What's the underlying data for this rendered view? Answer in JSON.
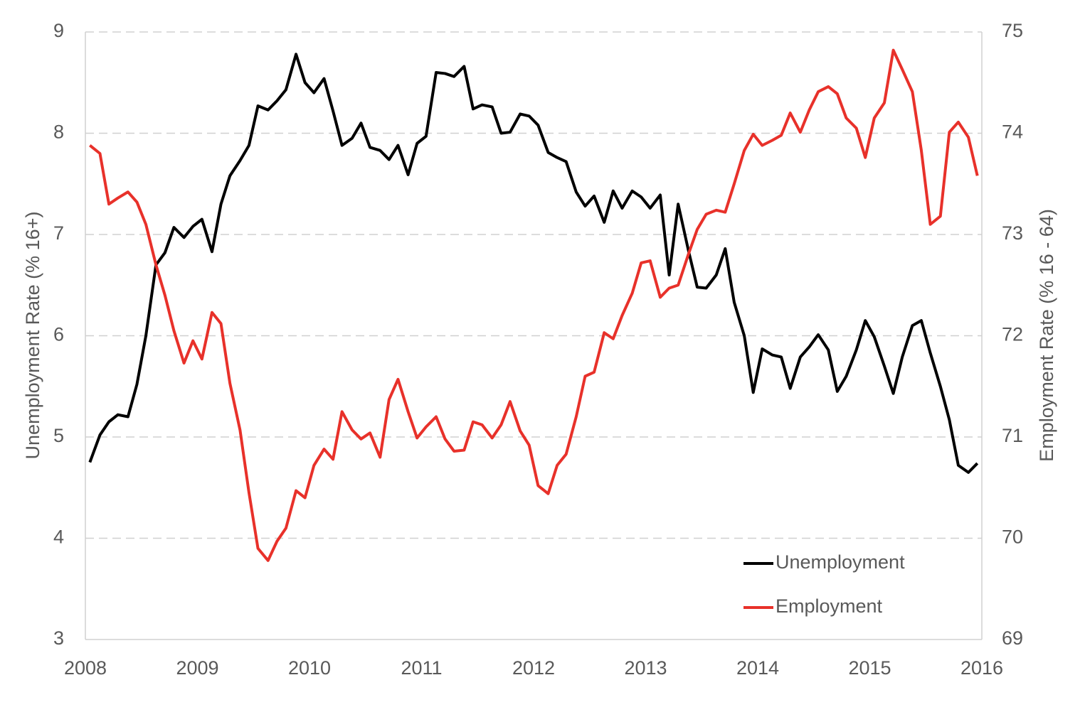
{
  "chart_data": {
    "type": "line",
    "ylabel": "Unemployment Rate (% 16+)",
    "y2label": "Employment Rate (% 16 - 64)",
    "x": [
      2008.04,
      2008.13,
      2008.21,
      2008.29,
      2008.38,
      2008.46,
      2008.54,
      2008.63,
      2008.71,
      2008.79,
      2008.88,
      2008.96,
      2009.04,
      2009.13,
      2009.21,
      2009.29,
      2009.38,
      2009.46,
      2009.54,
      2009.63,
      2009.71,
      2009.79,
      2009.88,
      2009.96,
      2010.04,
      2010.13,
      2010.21,
      2010.29,
      2010.38,
      2010.46,
      2010.54,
      2010.63,
      2010.71,
      2010.79,
      2010.88,
      2010.96,
      2011.04,
      2011.13,
      2011.21,
      2011.29,
      2011.38,
      2011.46,
      2011.54,
      2011.63,
      2011.71,
      2011.79,
      2011.88,
      2011.96,
      2012.04,
      2012.13,
      2012.21,
      2012.29,
      2012.38,
      2012.46,
      2012.54,
      2012.63,
      2012.71,
      2012.79,
      2012.88,
      2012.96,
      2013.04,
      2013.13,
      2013.21,
      2013.29,
      2013.38,
      2013.46,
      2013.54,
      2013.63,
      2013.71,
      2013.79,
      2013.88,
      2013.96,
      2014.04,
      2014.13,
      2014.21,
      2014.29,
      2014.38,
      2014.46,
      2014.54,
      2014.63,
      2014.71,
      2014.79,
      2014.88,
      2014.96,
      2015.04,
      2015.13,
      2015.21,
      2015.29,
      2015.38,
      2015.46,
      2015.54,
      2015.63,
      2015.71,
      2015.79,
      2015.88,
      2015.96
    ],
    "series": [
      {
        "name": "Unemployment",
        "color": "#000000",
        "axis": "y",
        "values": [
          4.75,
          5.02,
          5.15,
          5.22,
          5.2,
          5.52,
          6.0,
          6.7,
          6.82,
          7.07,
          6.97,
          7.08,
          7.15,
          6.83,
          7.3,
          7.58,
          7.73,
          7.88,
          8.27,
          8.23,
          8.32,
          8.43,
          8.78,
          8.5,
          8.4,
          8.54,
          8.22,
          7.88,
          7.95,
          8.1,
          7.86,
          7.83,
          7.74,
          7.88,
          7.59,
          7.9,
          7.97,
          8.6,
          8.59,
          8.56,
          8.66,
          8.24,
          8.28,
          8.26,
          8.0,
          8.01,
          8.19,
          8.17,
          8.08,
          7.81,
          7.76,
          7.72,
          7.42,
          7.28,
          7.38,
          7.12,
          7.43,
          7.26,
          7.43,
          7.37,
          7.26,
          7.39,
          6.6,
          7.3,
          6.85,
          6.48,
          6.47,
          6.6,
          6.86,
          6.33,
          6.0,
          5.44,
          5.87,
          5.81,
          5.79,
          5.48,
          5.79,
          5.89,
          6.01,
          5.86,
          5.45,
          5.6,
          5.86,
          6.15,
          5.99,
          5.7,
          5.43,
          5.79,
          6.1,
          6.15,
          5.83,
          5.5,
          5.17,
          4.72,
          4.65,
          4.74
        ]
      },
      {
        "name": "Employment",
        "color": "#e8312a",
        "axis": "y2",
        "values": [
          73.88,
          73.8,
          73.3,
          73.36,
          73.42,
          73.32,
          73.1,
          72.7,
          72.4,
          72.05,
          71.73,
          71.95,
          71.77,
          72.23,
          72.12,
          71.53,
          71.07,
          70.45,
          69.9,
          69.78,
          69.97,
          70.1,
          70.47,
          70.4,
          70.72,
          70.88,
          70.78,
          71.25,
          71.07,
          70.98,
          71.04,
          70.8,
          71.37,
          71.57,
          71.25,
          70.99,
          71.1,
          71.2,
          70.98,
          70.86,
          70.87,
          71.15,
          71.12,
          70.99,
          71.12,
          71.35,
          71.06,
          70.92,
          70.52,
          70.44,
          70.72,
          70.83,
          71.2,
          71.6,
          71.64,
          72.03,
          71.97,
          72.2,
          72.42,
          72.72,
          72.74,
          72.38,
          72.47,
          72.5,
          72.8,
          73.05,
          73.2,
          73.24,
          73.22,
          73.5,
          73.83,
          73.99,
          73.88,
          73.93,
          73.98,
          74.2,
          74.01,
          74.23,
          74.41,
          74.46,
          74.39,
          74.15,
          74.05,
          73.76,
          74.15,
          74.3,
          74.82,
          74.63,
          74.41,
          73.83,
          73.1,
          73.18,
          74.01,
          74.11,
          73.96,
          73.58
        ]
      }
    ],
    "xlim": [
      2008,
      2016
    ],
    "xticks": [
      2008,
      2009,
      2010,
      2011,
      2012,
      2013,
      2014,
      2015,
      2016
    ],
    "ylim": [
      3,
      9
    ],
    "yticks": [
      3,
      4,
      5,
      6,
      7,
      8,
      9
    ],
    "y2lim": [
      69,
      75
    ],
    "y2ticks": [
      69,
      70,
      71,
      72,
      73,
      74,
      75
    ],
    "grid": true,
    "legend": "lower-right"
  }
}
